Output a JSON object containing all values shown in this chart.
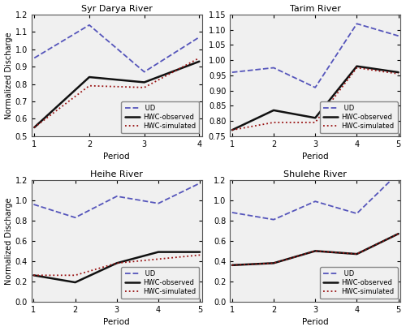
{
  "subplots": [
    {
      "title": "Syr Darya River",
      "x": [
        1,
        2,
        3,
        4
      ],
      "ud": [
        0.95,
        1.14,
        0.87,
        1.07
      ],
      "hwc_obs": [
        0.55,
        0.84,
        0.81,
        0.93
      ],
      "hwc_sim": [
        0.55,
        0.79,
        0.78,
        0.95
      ],
      "ylim": [
        0.5,
        1.2
      ],
      "yticks": [
        0.5,
        0.6,
        0.7,
        0.8,
        0.9,
        1.0,
        1.1,
        1.2
      ],
      "xlim": [
        1,
        4
      ],
      "xticks": [
        1,
        2,
        3,
        4
      ]
    },
    {
      "title": "Tarim River",
      "x": [
        1,
        2,
        3,
        4,
        5
      ],
      "ud": [
        0.96,
        0.975,
        0.91,
        1.12,
        1.08
      ],
      "hwc_obs": [
        0.77,
        0.835,
        0.81,
        0.98,
        0.96
      ],
      "hwc_sim": [
        0.77,
        0.795,
        0.795,
        0.975,
        0.955
      ],
      "ylim": [
        0.75,
        1.15
      ],
      "yticks": [
        0.75,
        0.8,
        0.85,
        0.9,
        0.95,
        1.0,
        1.05,
        1.1,
        1.15
      ],
      "xlim": [
        1,
        5
      ],
      "xticks": [
        1,
        2,
        3,
        4,
        5
      ]
    },
    {
      "title": "Heihe River",
      "x": [
        1,
        2,
        3,
        4,
        5
      ],
      "ud": [
        0.96,
        0.83,
        1.04,
        0.97,
        1.17
      ],
      "hwc_obs": [
        0.26,
        0.19,
        0.38,
        0.49,
        0.49
      ],
      "hwc_sim": [
        0.26,
        0.26,
        0.38,
        0.42,
        0.46
      ],
      "ylim": [
        0.0,
        1.2
      ],
      "yticks": [
        0.0,
        0.2,
        0.4,
        0.6,
        0.8,
        1.0,
        1.2
      ],
      "xlim": [
        1,
        5
      ],
      "xticks": [
        1,
        2,
        3,
        4,
        5
      ]
    },
    {
      "title": "Shulehe River",
      "x": [
        1,
        2,
        3,
        4,
        5
      ],
      "ud": [
        0.88,
        0.81,
        0.99,
        0.87,
        1.27
      ],
      "hwc_obs": [
        0.36,
        0.38,
        0.5,
        0.47,
        0.67
      ],
      "hwc_sim": [
        0.36,
        0.38,
        0.5,
        0.47,
        0.67
      ],
      "ylim": [
        0.0,
        1.2
      ],
      "yticks": [
        0.0,
        0.2,
        0.4,
        0.6,
        0.8,
        1.0,
        1.2
      ],
      "xlim": [
        1,
        5
      ],
      "xticks": [
        1,
        2,
        3,
        4,
        5
      ]
    }
  ],
  "ud_color": "#5555bb",
  "obs_color": "#111111",
  "sim_color": "#991111",
  "ud_style": "--",
  "obs_style": "-",
  "sim_style": ":",
  "ud_lw": 1.3,
  "obs_lw": 1.8,
  "sim_lw": 1.3,
  "ylabel": "Normalized Discharge",
  "xlabel": "Period",
  "legend_labels": [
    " UD",
    "HWC-observed",
    "HWC-simulated"
  ],
  "bg_color": "#f0f0f0",
  "fig_bg": "#ffffff"
}
